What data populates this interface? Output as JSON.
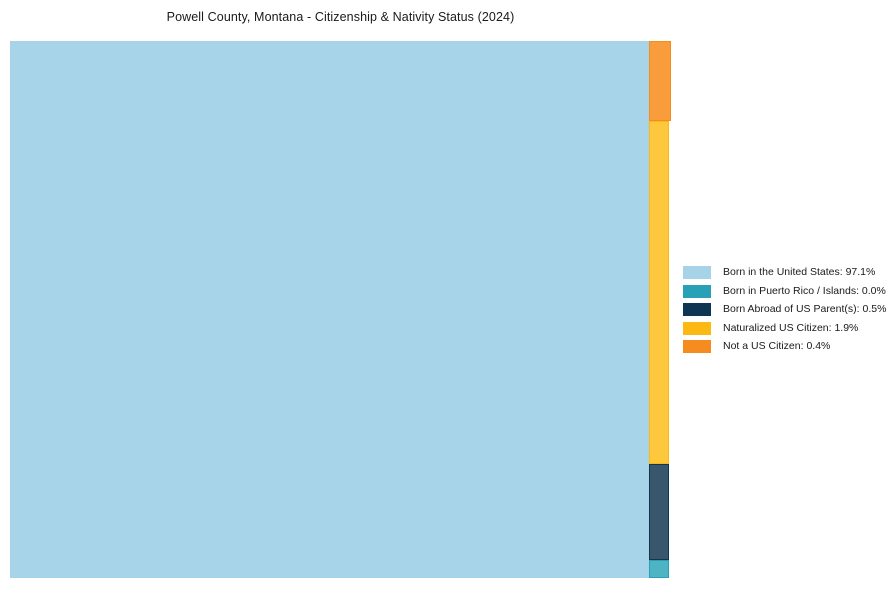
{
  "title": "Powell County, Montana - Citizenship & Nativity Status (2024)",
  "chart_data": {
    "type": "treemap",
    "title": "Powell County, Montana - Citizenship & Nativity Status (2024)",
    "unit": "%",
    "categories": [
      "Born in the United States",
      "Born in Puerto Rico / Islands",
      "Born Abroad of US Parent(s)",
      "Naturalized US Citizen",
      "Not a US Citizen"
    ],
    "values": [
      97.1,
      0.0,
      0.5,
      1.9,
      0.4
    ],
    "colors": [
      "#a6d3e8",
      "#28a0b5",
      "#0e3551",
      "#fcb813",
      "#f68b1f"
    ],
    "block_fill_colors": [
      "#a7d4e9",
      "#4eb4c4",
      "#38576c",
      "#fdc73e",
      "#f89c3c"
    ],
    "legend_position": "center-right",
    "layout_hint": "single large block for majority category, remaining categories stacked in narrow right column (top to bottom: Not a US Citizen, Naturalized, Born Abroad, Puerto Rico)"
  },
  "legend": {
    "items": [
      {
        "label": "Born in the United States: 97.1%",
        "color": "#a6d3e8"
      },
      {
        "label": "Born in Puerto Rico / Islands: 0.0%",
        "color": "#28a0b5"
      },
      {
        "label": "Born Abroad of US Parent(s): 0.5%",
        "color": "#0e3551"
      },
      {
        "label": "Naturalized US Citizen: 1.9%",
        "color": "#fcb813"
      },
      {
        "label": "Not a US Citizen: 0.4%",
        "color": "#f68b1f"
      }
    ]
  }
}
